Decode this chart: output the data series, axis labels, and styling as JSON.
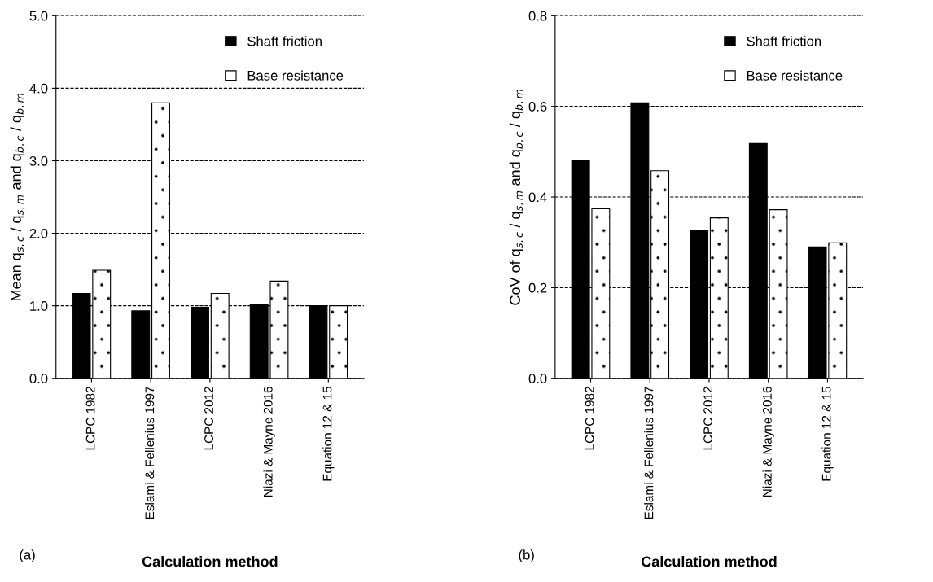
{
  "chart_data": [
    {
      "type": "bar",
      "xlabel": "Calculation method",
      "ylabel": "Mean q$_{s,c}$ / q$_{s,m}$ and q$_{b,c}$ / q$_{b,m}$",
      "categories": [
        "LCPC 1982",
        "Eslami & Fellenius 1997",
        "LCPC 2012",
        "Niazi & Mayne 2016",
        "Equation 12 & 15"
      ],
      "series": [
        {
          "name": "Shaft friction",
          "color": "#000000",
          "values": [
            1.17,
            0.93,
            0.98,
            1.02,
            1.0
          ]
        },
        {
          "name": "Base resistance",
          "color": "#ffffff",
          "values": [
            1.49,
            3.8,
            1.17,
            1.34,
            1.0
          ]
        }
      ],
      "ylim": [
        0,
        5
      ],
      "yticks": [
        {
          "value": 0,
          "label": "0.0"
        },
        {
          "value": 1,
          "label": "1.0"
        },
        {
          "value": 2,
          "label": "2.0"
        },
        {
          "value": 3,
          "label": "3.0"
        },
        {
          "value": 4,
          "label": "4.0"
        },
        {
          "value": 5,
          "label": "5.0"
        }
      ],
      "grid": "y",
      "legend": "top right",
      "annotations": [
        "(a)"
      ]
    },
    {
      "type": "bar",
      "xlabel": "Calculation method",
      "ylabel": "CoV of q$_{s,c}$ / q$_{s,m}$ and q$_{b,c}$ / q$_{b,m}$",
      "categories": [
        "LCPC 1982",
        "Eslami & Fellenius 1997",
        "LCPC 2012",
        "Niazi & Mayne 2016",
        "Equation 12 & 15"
      ],
      "series": [
        {
          "name": "Shaft friction",
          "color": "#000000",
          "values": [
            0.48,
            0.608,
            0.327,
            0.518,
            0.29
          ]
        },
        {
          "name": "Base resistance",
          "color": "#ffffff",
          "values": [
            0.374,
            0.458,
            0.354,
            0.372,
            0.299
          ]
        }
      ],
      "ylim": [
        0,
        0.8
      ],
      "yticks": [
        {
          "value": 0,
          "label": "0.0"
        },
        {
          "value": 0.2,
          "label": "0.2"
        },
        {
          "value": 0.4,
          "label": "0.4"
        },
        {
          "value": 0.6,
          "label": "0.6"
        },
        {
          "value": 0.8,
          "label": "0.8"
        }
      ],
      "grid": "y",
      "legend": "top right",
      "annotations": [
        "(b)"
      ]
    }
  ]
}
